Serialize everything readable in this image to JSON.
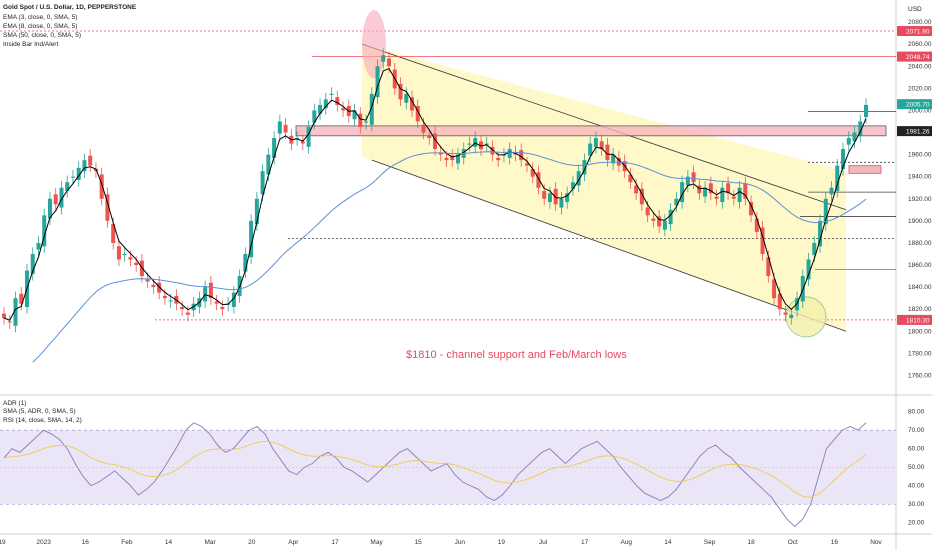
{
  "header": {
    "symbol_line": "Gold Spot / U.S. Dollar, 1D, PEPPERSTONE",
    "indicators": [
      "EMA (3, close, 0, SMA, 5)",
      "EMA (8, close, 0, SMA, 5)",
      "SMA (50, close, 0, SMA, 5)",
      "Inside Bar Ind/Alert"
    ],
    "currency": "USD"
  },
  "annotation": "$1810 - channel support and Feb/March lows",
  "rsi_legend": [
    "ADR (1)",
    "SMA (5, ADR, 0, SMA, 5)",
    "RSI (14, close, SMA, 14, 2)"
  ],
  "colors": {
    "up": "#26a69a",
    "down": "#ef5350",
    "ema3": "#000000",
    "sma50": "#5b8fd6",
    "channel_fill": "#fff8c4",
    "level": "#e84a5f",
    "rsi": "#8c7ab8",
    "rsi_ma": "#f2c94c",
    "rsi_band": "#ebe6f7"
  },
  "chart_data": [
    {
      "type": "candlestick",
      "title": "Gold Spot / U.S. Dollar, 1D, PEPPERSTONE",
      "ylim": [
        1745,
        2100
      ],
      "y_ticks": [
        1760,
        1780,
        1800,
        1820,
        1840,
        1860,
        1880,
        1900,
        1920,
        1940,
        1960,
        1980,
        2000,
        2020,
        2040,
        2060,
        2080
      ],
      "x_ticks": [
        "19",
        "2023",
        "16",
        "Feb",
        "14",
        "Mar",
        "20",
        "Apr",
        "17",
        "May",
        "15",
        "Jun",
        "19",
        "Jul",
        "17",
        "Aug",
        "14",
        "Sep",
        "18",
        "Oct",
        "16",
        "Nov"
      ],
      "price_badges": [
        {
          "label": "2071.90",
          "value": 2071.9,
          "color": "#e84a5f"
        },
        {
          "label": "2048.74",
          "value": 2048.74,
          "color": "#e84a5f"
        },
        {
          "label": "2005.70",
          "value": 2005.7,
          "color": "#26a69a"
        },
        {
          "label": "1981.26",
          "value": 1981.26,
          "color": "#222222"
        },
        {
          "label": "1810.30",
          "value": 1810.3,
          "color": "#e84a5f"
        }
      ],
      "close_path": [
        1812,
        1808,
        1830,
        1825,
        1855,
        1870,
        1880,
        1905,
        1920,
        1915,
        1930,
        1935,
        1940,
        1948,
        1955,
        1950,
        1945,
        1920,
        1900,
        1880,
        1865,
        1870,
        1865,
        1860,
        1850,
        1845,
        1840,
        1835,
        1830,
        1828,
        1825,
        1820,
        1815,
        1825,
        1830,
        1840,
        1830,
        1825,
        1820,
        1825,
        1835,
        1850,
        1870,
        1900,
        1920,
        1945,
        1960,
        1975,
        1990,
        1980,
        1970,
        1975,
        1970,
        1985,
        2000,
        2005,
        2010,
        2015,
        2005,
        2000,
        1995,
        2000,
        1985,
        1990,
        2015,
        2040,
        2050,
        2040,
        2020,
        2010,
        2015,
        2000,
        1990,
        1980,
        1975,
        1965,
        1960,
        1955,
        1955,
        1960,
        1965,
        1970,
        1975,
        1965,
        1970,
        1960,
        1955,
        1960,
        1965,
        1960,
        1955,
        1950,
        1940,
        1930,
        1920,
        1925,
        1915,
        1920,
        1925,
        1935,
        1945,
        1955,
        1970,
        1975,
        1965,
        1955,
        1960,
        1950,
        1945,
        1935,
        1925,
        1915,
        1905,
        1900,
        1895,
        1900,
        1910,
        1920,
        1935,
        1940,
        1935,
        1925,
        1930,
        1925,
        1920,
        1930,
        1925,
        1920,
        1930,
        1920,
        1905,
        1890,
        1870,
        1850,
        1830,
        1820,
        1815,
        1815,
        1830,
        1850,
        1865,
        1880,
        1900,
        1920,
        1930,
        1950,
        1965,
        1975,
        1980,
        1990,
        2005
      ]
    },
    {
      "type": "line",
      "title": "RSI (14, close, SMA, 14, 2)",
      "ylim": [
        15,
        82
      ],
      "y_ticks": [
        20,
        30,
        40,
        50,
        60,
        70,
        80
      ],
      "bands": [
        30,
        70
      ],
      "series": [
        {
          "name": "RSI",
          "values": [
            55,
            60,
            58,
            62,
            66,
            70,
            68,
            65,
            60,
            52,
            45,
            40,
            42,
            45,
            48,
            44,
            40,
            35,
            38,
            42,
            48,
            55,
            62,
            70,
            74,
            72,
            68,
            62,
            58,
            60,
            65,
            70,
            72,
            68,
            60,
            54,
            48,
            46,
            50,
            52,
            56,
            58,
            55,
            50,
            48,
            45,
            42,
            46,
            50,
            54,
            58,
            60,
            56,
            52,
            48,
            50,
            52,
            46,
            42,
            40,
            38,
            34,
            32,
            35,
            40,
            46,
            50,
            54,
            58,
            60,
            56,
            52,
            56,
            60,
            62,
            64,
            60,
            56,
            50,
            45,
            40,
            36,
            34,
            32,
            34,
            38,
            44,
            50,
            56,
            60,
            62,
            58,
            55,
            50,
            46,
            42,
            38,
            34,
            28,
            22,
            18,
            22,
            30,
            45,
            60,
            65,
            70,
            72,
            70,
            74
          ]
        }
      ]
    }
  ]
}
